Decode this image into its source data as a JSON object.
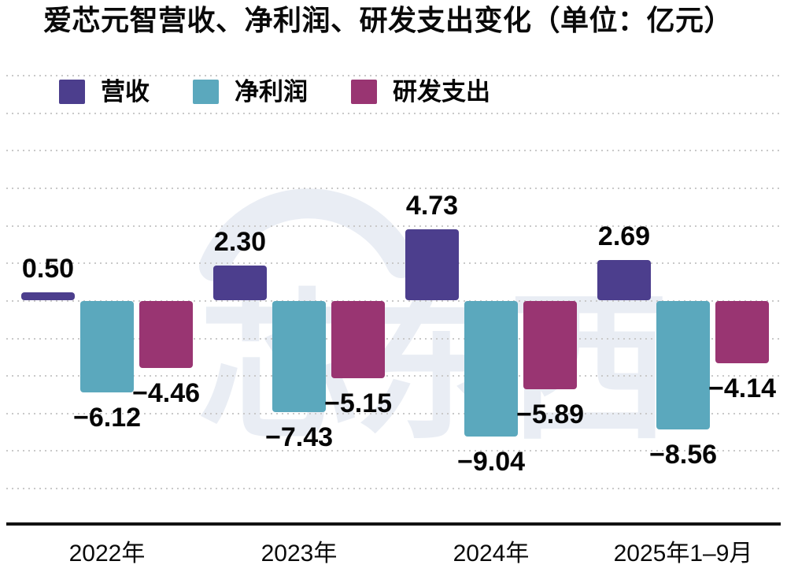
{
  "title": "爱芯元智营收、净利润、研发支出变化（单位：亿元）",
  "watermark": "芯东西",
  "colors": {
    "revenue": "#4c3e8d",
    "net_profit": "#5ba8bd",
    "rd_spend": "#993572",
    "grid": "#c9c9c9",
    "axis": "#121212",
    "text": "#050505",
    "watermark": "#e9edf4"
  },
  "chart_data": {
    "type": "bar",
    "title": "爱芯元智营收、净利润、研发支出变化",
    "unit": "亿元",
    "categories": [
      "2022年",
      "2023年",
      "2024年",
      "2025年1–9月"
    ],
    "series": [
      {
        "name": "营收",
        "color_key": "revenue",
        "values": [
          0.5,
          2.3,
          4.73,
          2.69
        ],
        "labels": [
          "0.50",
          "2.30",
          "4.73",
          "2.69"
        ]
      },
      {
        "name": "净利润",
        "color_key": "net_profit",
        "values": [
          -6.12,
          -7.43,
          -9.04,
          -8.56
        ],
        "labels": [
          "−6.12",
          "−7.43",
          "−9.04",
          "−8.56"
        ]
      },
      {
        "name": "研发支出",
        "color_key": "rd_spend",
        "values": [
          -4.46,
          -5.15,
          -5.89,
          -4.14
        ],
        "labels": [
          "−4.46",
          "−5.15",
          "−5.89",
          "−4.14"
        ]
      }
    ],
    "legend": [
      "营收",
      "净利润",
      "研发支出"
    ],
    "legend_position": "top-left",
    "ylim": [
      -15,
      15
    ],
    "gridline_step": 2.5,
    "grid": "horizontal-dotted"
  }
}
